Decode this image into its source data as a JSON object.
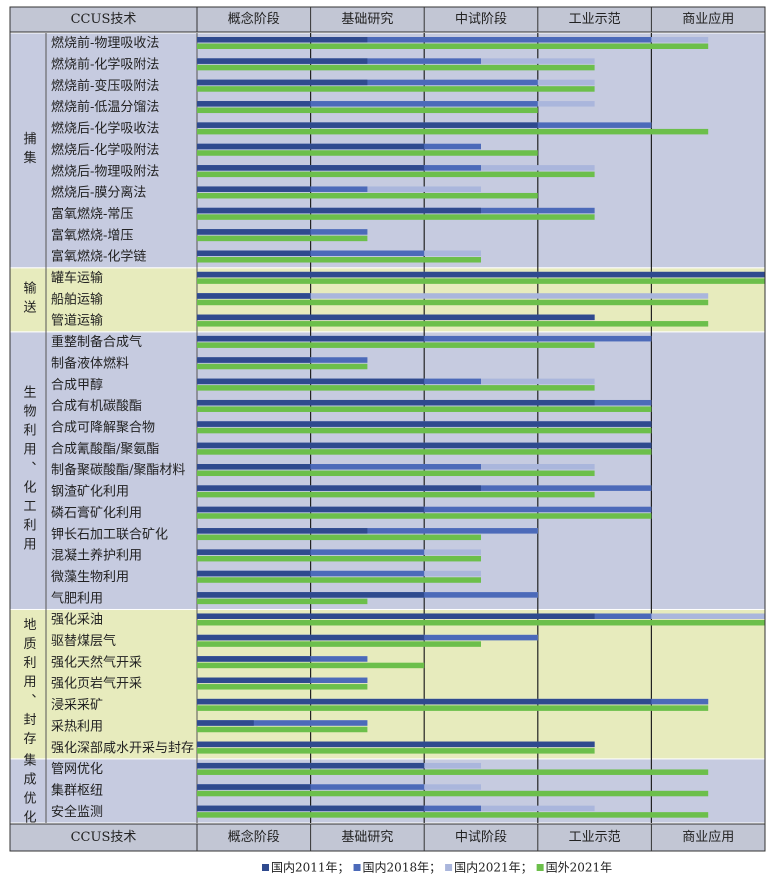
{
  "chart_data": {
    "type": "bar",
    "orientation": "horizontal",
    "header_label": "CCUS技术",
    "stages": [
      "概念阶段",
      "基础研究",
      "中试阶段",
      "工业示范",
      "商业应用"
    ],
    "xlim": [
      0,
      5
    ],
    "groups": [
      {
        "name": "捕集",
        "color": "#c6cbe0",
        "categories": [
          "燃烧前-物理吸收法",
          "燃烧前-化学吸附法",
          "燃烧前-变压吸附法",
          "燃烧前-低温分馏法",
          "燃烧后-化学吸收法",
          "燃烧后-化学吸附法",
          "燃烧后-物理吸附法",
          "燃烧后-膜分离法",
          "富氧燃烧-常压",
          "富氧燃烧-增压",
          "富氧燃烧-化学链"
        ]
      },
      {
        "name": "输送",
        "color": "#e7ebbd",
        "categories": [
          "罐车运输",
          "船舶运输",
          "管道运输"
        ]
      },
      {
        "name": "生物利用、化工利用",
        "color": "#c6cbe0",
        "categories": [
          "重整制备合成气",
          "制备液体燃料",
          "合成甲醇",
          "合成有机碳酸酯",
          "合成可降解聚合物",
          "合成氰酸酯/聚氨酯",
          "制备聚碳酸酯/聚酯材料",
          "钢渣矿化利用",
          "磷石膏矿化利用",
          "钾长石加工联合矿化",
          "混凝土养护利用",
          "微藻生物利用",
          "气肥利用"
        ]
      },
      {
        "name": "地质利用、封存",
        "color": "#e7ebbd",
        "categories": [
          "强化采油",
          "驱替煤层气",
          "强化天然气开采",
          "强化页岩气开采",
          "浸采采矿",
          "采热利用",
          "强化深部咸水开采与封存"
        ]
      },
      {
        "name": "集成优化",
        "color": "#c6cbe0",
        "categories": [
          "管网优化",
          "集群枢纽",
          "安全监测"
        ]
      }
    ],
    "series": [
      {
        "name": "国内2011年；",
        "color": "#2f4a8e",
        "values": [
          1.5,
          1.5,
          1.5,
          1,
          3,
          2,
          2,
          1,
          2.5,
          1,
          1,
          5,
          1,
          3.5,
          2,
          1,
          2,
          3.5,
          4,
          4,
          1,
          2.5,
          2,
          1.5,
          1,
          1,
          2,
          3.5,
          2,
          1,
          1,
          4,
          0.5,
          3.5,
          2,
          1,
          2
        ]
      },
      {
        "name": "国内2018年；",
        "color": "#4c6ab9",
        "values": [
          4,
          2.5,
          3,
          3,
          4,
          2.5,
          2.5,
          1.5,
          3.5,
          1.5,
          2,
          5,
          1,
          3.5,
          4,
          1.5,
          2.5,
          4,
          4,
          4,
          2.5,
          4,
          4,
          3,
          2,
          2,
          3,
          4,
          3,
          1.5,
          1.5,
          4.5,
          1.5,
          3.5,
          2,
          2,
          2.5
        ]
      },
      {
        "name": "国内2021年；",
        "color": "#aab6dc",
        "values": [
          4.5,
          3.5,
          3.5,
          3.5,
          4,
          2.5,
          3.5,
          2.5,
          3.5,
          1.5,
          2.5,
          5,
          4.5,
          3.5,
          4,
          1.5,
          3.5,
          4,
          4,
          4,
          3.5,
          4,
          4,
          3,
          2.5,
          2.5,
          3,
          5,
          3,
          1.5,
          1.5,
          4.5,
          1.5,
          3.5,
          2.5,
          2.5,
          3.5
        ]
      },
      {
        "name": "国外2021年",
        "color": "#6cbf4b",
        "values": [
          4.5,
          3.5,
          3.5,
          3,
          4.5,
          3,
          3.5,
          3,
          3.5,
          1.5,
          2.5,
          5,
          4.5,
          4.5,
          3.5,
          1.5,
          3.5,
          4,
          4,
          4,
          3.5,
          3.5,
          4,
          2.5,
          2.5,
          2.5,
          1.5,
          5,
          2.5,
          2,
          1.5,
          4.5,
          1.5,
          3.5,
          4.5,
          4.5,
          4.5
        ]
      }
    ]
  }
}
